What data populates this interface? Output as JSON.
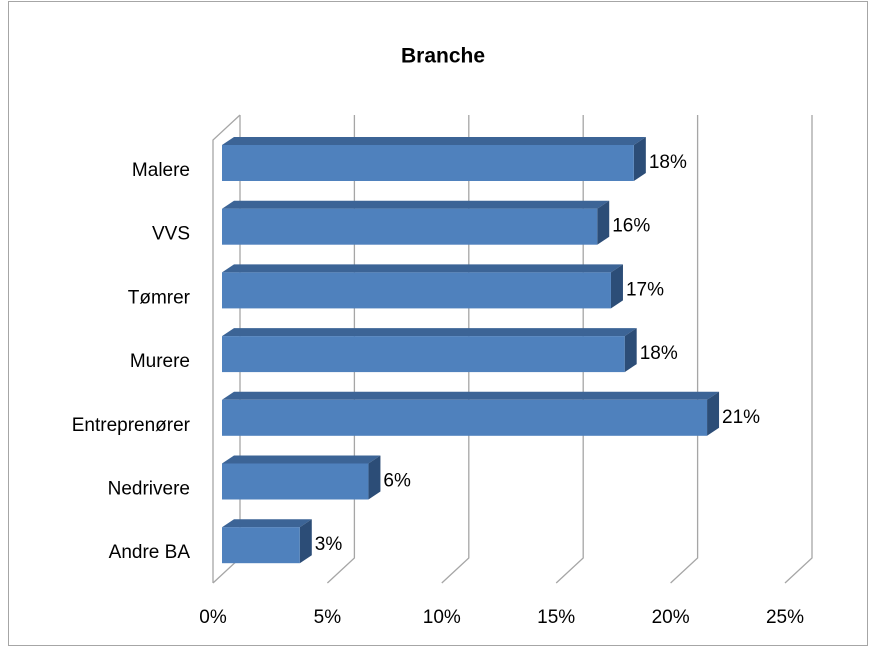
{
  "chart_data": {
    "type": "bar3d",
    "title": "Branche",
    "categories": [
      "Malere",
      "VVS",
      "Tømrer",
      "Murere",
      "Entreprenører",
      "Nedrivere",
      "Andre BA"
    ],
    "values": [
      18.0,
      16.4,
      17.0,
      17.6,
      21.2,
      6.4,
      3.4
    ],
    "value_labels": [
      "18%",
      "16%",
      "17%",
      "18%",
      "21%",
      "6%",
      "3%"
    ],
    "color": "#4f81bd",
    "xlim": [
      0,
      25
    ],
    "xticks": [
      {
        "value": 0,
        "label": "0%"
      },
      {
        "value": 5,
        "label": "5%"
      },
      {
        "value": 10,
        "label": "10%"
      },
      {
        "value": 15,
        "label": "15%"
      },
      {
        "value": 20,
        "label": "20%"
      },
      {
        "value": 25,
        "label": "25%"
      }
    ],
    "grid": true
  }
}
